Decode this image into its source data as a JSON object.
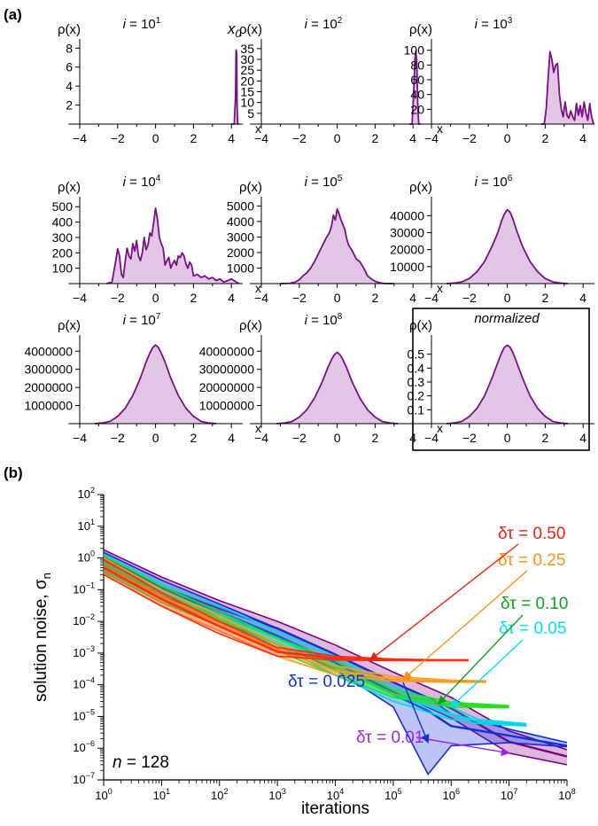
{
  "labels": {
    "panel_a": "(a)",
    "panel_b": "(b)"
  },
  "chart_data": [
    {
      "type": "area",
      "panel": "(a)",
      "title": "i = 10^1",
      "title_base": "i = 10",
      "title_exp": "1",
      "ylabel": "ρ(x)",
      "xlabel": "x",
      "xlim": [
        -4,
        4.6
      ],
      "ylim": [
        0,
        8.4
      ],
      "yticks": [
        2,
        4,
        6,
        8
      ],
      "xticks": [
        -4,
        -2,
        0,
        2,
        4
      ],
      "annotation": "x0",
      "annotation_base": "x",
      "annotation_sub": "0",
      "x": [
        4.0,
        4.15,
        4.22,
        4.25,
        4.28,
        4.3,
        4.33,
        4.4
      ],
      "y": [
        0,
        0,
        3,
        7.8,
        7.5,
        2,
        0,
        0
      ]
    },
    {
      "type": "area",
      "panel": "(a)",
      "title": "i = 10^2",
      "title_base": "i = 10",
      "title_exp": "2",
      "ylabel": "ρ(x)",
      "xlabel": "x",
      "xlim": [
        -4,
        4.6
      ],
      "ylim": [
        0,
        37
      ],
      "yticks": [
        5,
        10,
        15,
        20,
        25,
        30,
        35
      ],
      "xticks": [
        -4,
        -2,
        0,
        2,
        4
      ],
      "x": [
        3.8,
        3.95,
        4.0,
        4.05,
        4.1,
        4.15,
        4.2,
        4.25,
        4.3,
        4.4
      ],
      "y": [
        0,
        0,
        8,
        18,
        30,
        34,
        28,
        10,
        0,
        0
      ]
    },
    {
      "type": "area",
      "panel": "(a)",
      "title": "i = 10^3",
      "title_base": "i = 10",
      "title_exp": "3",
      "ylabel": "ρ(x)",
      "xlabel": "x",
      "xlim": [
        -4,
        4.6
      ],
      "ylim": [
        0,
        108
      ],
      "yticks": [
        20,
        40,
        60,
        80,
        100
      ],
      "xticks": [
        -4,
        -2,
        0,
        2,
        4
      ],
      "x": [
        1.8,
        1.95,
        2.05,
        2.15,
        2.25,
        2.35,
        2.45,
        2.55,
        2.65,
        2.75,
        2.85,
        2.95,
        3.05,
        3.15,
        3.25,
        3.35,
        3.45,
        3.55,
        3.65,
        3.75,
        3.85,
        3.95,
        4.05,
        4.15,
        4.25,
        4.35,
        4.45,
        4.55
      ],
      "y": [
        0,
        0,
        20,
        60,
        98,
        88,
        70,
        80,
        82,
        40,
        20,
        10,
        30,
        12,
        8,
        18,
        10,
        5,
        28,
        12,
        25,
        10,
        30,
        15,
        5,
        28,
        10,
        0
      ]
    },
    {
      "type": "area",
      "panel": "(a)",
      "title": "i = 10^4",
      "title_base": "i = 10",
      "title_exp": "4",
      "ylabel": "ρ(x)",
      "xlabel": "x",
      "xlim": [
        -4,
        4.6
      ],
      "ylim": [
        0,
        530
      ],
      "yticks": [
        100,
        200,
        300,
        400,
        500
      ],
      "xticks": [
        -4,
        -2,
        0,
        2,
        4
      ],
      "x": [
        -2.6,
        -2.3,
        -2.1,
        -2.0,
        -1.9,
        -1.8,
        -1.7,
        -1.6,
        -1.5,
        -1.4,
        -1.3,
        -1.2,
        -1.1,
        -1.0,
        -0.9,
        -0.8,
        -0.7,
        -0.6,
        -0.5,
        -0.4,
        -0.3,
        -0.2,
        -0.1,
        0.0,
        0.1,
        0.2,
        0.3,
        0.4,
        0.5,
        0.6,
        0.7,
        0.8,
        0.9,
        1.0,
        1.1,
        1.2,
        1.3,
        1.4,
        1.5,
        1.6,
        1.7,
        1.8,
        1.9,
        2.0,
        2.2,
        2.4,
        2.6,
        2.8,
        3.0,
        3.2,
        3.4,
        3.6,
        3.8,
        4.0,
        4.2,
        4.4
      ],
      "y": [
        0,
        10,
        150,
        225,
        180,
        60,
        40,
        150,
        230,
        180,
        160,
        260,
        210,
        280,
        180,
        150,
        200,
        300,
        220,
        250,
        330,
        310,
        400,
        490,
        420,
        300,
        260,
        230,
        120,
        150,
        170,
        100,
        130,
        150,
        120,
        180,
        170,
        200,
        180,
        130,
        100,
        140,
        120,
        50,
        60,
        40,
        50,
        30,
        40,
        20,
        30,
        10,
        20,
        30,
        15,
        0
      ]
    },
    {
      "type": "area",
      "panel": "(a)",
      "title": "i = 10^5",
      "title_base": "i = 10",
      "title_exp": "5",
      "ylabel": "ρ(x)",
      "xlabel": "x",
      "xlim": [
        -4,
        4.6
      ],
      "ylim": [
        0,
        5250
      ],
      "yticks": [
        1000,
        2000,
        3000,
        4000,
        5000
      ],
      "xticks": [
        -4,
        -2,
        0,
        2,
        4
      ],
      "x": [
        -3.0,
        -2.5,
        -2.2,
        -2.0,
        -1.8,
        -1.6,
        -1.4,
        -1.2,
        -1.0,
        -0.8,
        -0.6,
        -0.5,
        -0.4,
        -0.3,
        -0.2,
        -0.1,
        0.0,
        0.1,
        0.2,
        0.3,
        0.4,
        0.5,
        0.6,
        0.8,
        1.0,
        1.2,
        1.4,
        1.6,
        1.8,
        2.0,
        2.2,
        2.5,
        3.0
      ],
      "y": [
        0,
        20,
        100,
        250,
        500,
        700,
        1000,
        1400,
        1900,
        2400,
        2900,
        3100,
        3300,
        3700,
        4400,
        4100,
        4800,
        4500,
        4100,
        3800,
        3500,
        2900,
        2500,
        2100,
        1600,
        1400,
        1000,
        500,
        300,
        150,
        60,
        10,
        0
      ]
    },
    {
      "type": "area",
      "panel": "(a)",
      "title": "i = 10^6",
      "title_base": "i = 10",
      "title_exp": "6",
      "ylabel": "ρ(x)",
      "xlabel": "x",
      "xlim": [
        -4,
        4.6
      ],
      "ylim": [
        0,
        48000
      ],
      "yticks": [
        10000,
        20000,
        30000,
        40000
      ],
      "xticks": [
        -4,
        -2,
        0,
        2,
        4
      ],
      "x": [
        -3.2,
        -2.8,
        -2.4,
        -2.0,
        -1.6,
        -1.2,
        -0.8,
        -0.5,
        -0.3,
        -0.15,
        0.0,
        0.15,
        0.3,
        0.5,
        0.8,
        1.2,
        1.6,
        2.0,
        2.4,
        2.8,
        3.2
      ],
      "y": [
        0,
        300,
        1000,
        3000,
        7000,
        13000,
        22000,
        30000,
        37000,
        41000,
        43500,
        42000,
        38000,
        31000,
        22000,
        13000,
        7000,
        3000,
        1000,
        300,
        0
      ]
    },
    {
      "type": "area",
      "panel": "(a)",
      "title": "i = 10^7",
      "title_base": "i = 10",
      "title_exp": "7",
      "ylabel": "ρ(x)",
      "xlabel": "x",
      "xlim": [
        -4,
        4.6
      ],
      "ylim": [
        0,
        4600000
      ],
      "yticks": [
        1000000,
        2000000,
        3000000,
        4000000
      ],
      "xticks": [
        -4,
        -2,
        0,
        2,
        4
      ],
      "x": [
        -3.2,
        -2.8,
        -2.4,
        -2.0,
        -1.6,
        -1.2,
        -0.8,
        -0.5,
        -0.3,
        -0.15,
        0.0,
        0.15,
        0.3,
        0.5,
        0.8,
        1.2,
        1.6,
        2.0,
        2.4,
        2.8,
        3.2
      ],
      "y": [
        0,
        40000,
        120000,
        400000,
        850000,
        1550000,
        2520000,
        3400000,
        3900000,
        4200000,
        4350000,
        4200000,
        3900000,
        3400000,
        2520000,
        1550000,
        850000,
        400000,
        120000,
        40000,
        0
      ]
    },
    {
      "type": "area",
      "panel": "(a)",
      "title": "i = 10^8",
      "title_base": "i = 10",
      "title_exp": "8",
      "ylabel": "ρ(x)",
      "xlabel": "x",
      "xlim": [
        -4,
        4.6
      ],
      "ylim": [
        0,
        46000000
      ],
      "yticks": [
        10000000,
        20000000,
        30000000,
        40000000
      ],
      "xticks": [
        -4,
        -2,
        0,
        2,
        4
      ],
      "x": [
        -3.2,
        -2.8,
        -2.4,
        -2.0,
        -1.6,
        -1.2,
        -0.8,
        -0.5,
        -0.3,
        -0.15,
        0.0,
        0.15,
        0.3,
        0.5,
        0.8,
        1.2,
        1.6,
        2.0,
        2.4,
        2.8,
        3.2
      ],
      "y": [
        0,
        350000,
        1100000,
        3600000,
        7700000,
        14000000,
        22800000,
        30800000,
        35400000,
        38000000,
        39400000,
        38000000,
        35400000,
        30800000,
        22800000,
        14000000,
        7700000,
        3600000,
        1100000,
        350000,
        0
      ]
    },
    {
      "type": "area",
      "panel": "(a)",
      "title": "normalized",
      "title_italic": true,
      "ylabel": "ρ(x)",
      "xlabel": "x",
      "xlim": [
        -4,
        4.6
      ],
      "ylim": [
        0,
        0.6
      ],
      "yticks": [
        0.1,
        0.2,
        0.3,
        0.4,
        0.5
      ],
      "xticks": [
        -4,
        -2,
        0,
        2,
        4
      ],
      "boxed": true,
      "x": [
        -3.2,
        -2.8,
        -2.4,
        -2.0,
        -1.6,
        -1.2,
        -0.8,
        -0.5,
        -0.3,
        -0.15,
        0.0,
        0.15,
        0.3,
        0.5,
        0.8,
        1.2,
        1.6,
        2.0,
        2.4,
        2.8,
        3.2
      ],
      "y": [
        0,
        0.005,
        0.016,
        0.052,
        0.11,
        0.2,
        0.33,
        0.44,
        0.51,
        0.55,
        0.565,
        0.55,
        0.51,
        0.44,
        0.33,
        0.2,
        0.11,
        0.052,
        0.016,
        0.005,
        0
      ]
    },
    {
      "type": "line",
      "panel": "(b)",
      "xscale": "log",
      "yscale": "log",
      "xlabel": "iterations",
      "ylabel": "solution noise, σn",
      "ylabel_base": "solution noise, σ",
      "ylabel_sub": "n",
      "xlim": [
        1,
        100000000
      ],
      "ylim": [
        1e-07,
        100
      ],
      "xtick_exponents": [
        0,
        1,
        2,
        3,
        4,
        5,
        6,
        7,
        8
      ],
      "ytick_exponents": [
        -7,
        -6,
        -5,
        -4,
        -3,
        -2,
        -1,
        0,
        1,
        2
      ],
      "tick_base": "10",
      "annotation": "n = 128",
      "annotation_var": "n",
      "annotation_val": " = 128",
      "series": [
        {
          "name": "δτ = 0.01",
          "color": "#a020f0",
          "band_color": "#800080",
          "x": [
            1,
            10,
            100,
            1000,
            10000,
            100000,
            1000000,
            10000000,
            100000000
          ],
          "upper": [
            1.8,
            0.25,
            0.045,
            0.01,
            0.0018,
            0.00025,
            4e-05,
            3.5e-06,
            9e-07
          ],
          "mean": [
            1.0,
            0.12,
            0.025,
            0.006,
            0.0009,
            0.00012,
            1.8e-05,
            1.6e-06,
            5.5e-07
          ],
          "lower": [
            0.5,
            0.06,
            0.015,
            0.0035,
            0.0005,
            6e-05,
            9e-06,
            7e-07,
            3e-07
          ],
          "arrow_to": [
            10000000,
            7e-07
          ]
        },
        {
          "name": "δτ = 0.025",
          "color": "#1030e0",
          "band_color": "#1030e0",
          "x": [
            1,
            10,
            100,
            1000,
            10000,
            100000,
            400000,
            1000000,
            10000000,
            100000000
          ],
          "upper": [
            1.5,
            0.2,
            0.035,
            0.006,
            0.0009,
            0.00012,
            4e-05,
            1.2e-05,
            4e-06,
            1.5e-06
          ],
          "mean": [
            0.8,
            0.1,
            0.02,
            0.0035,
            0.0005,
            5e-05,
            1.5e-05,
            5e-06,
            2.5e-06,
            1.2e-06
          ],
          "lower": [
            0.4,
            0.05,
            0.01,
            0.002,
            0.0003,
            2e-05,
            1.5e-07,
            1.2e-06,
            1.5e-06,
            1.1e-06
          ],
          "arrow_to": [
            400000,
            1.5e-06
          ]
        },
        {
          "name": "δτ = 0.05",
          "color": "#00e0f0",
          "band_color": "#00d8e8",
          "x": [
            1,
            10,
            100,
            1000,
            10000,
            100000,
            1000000,
            3000000,
            20000000
          ],
          "upper": [
            1.3,
            0.15,
            0.03,
            0.005,
            0.0008,
            9e-05,
            2e-05,
            8e-06,
            6e-06
          ],
          "mean": [
            0.7,
            0.09,
            0.015,
            0.003,
            0.0004,
            5e-05,
            1.2e-05,
            7e-06,
            5.5e-06
          ],
          "lower": [
            0.4,
            0.05,
            0.009,
            0.0018,
            0.0002,
            3e-05,
            8e-06,
            6e-06,
            5e-06
          ],
          "arrow_to": [
            1000000,
            2e-05
          ]
        },
        {
          "name": "δτ = 0.10",
          "color": "#10a020",
          "band_color": "#20e020",
          "x": [
            1,
            10,
            100,
            1000,
            10000,
            100000,
            1000000,
            10000000
          ],
          "upper": [
            1.2,
            0.13,
            0.02,
            0.003,
            0.0006,
            7e-05,
            2.8e-05,
            2.2e-05
          ],
          "mean": [
            0.6,
            0.08,
            0.012,
            0.002,
            0.00035,
            5e-05,
            2.4e-05,
            2e-05
          ],
          "lower": [
            0.35,
            0.04,
            0.007,
            0.0012,
            0.0002,
            4e-05,
            2e-05,
            1.9e-05
          ],
          "arrow_to": [
            600000,
            2.5e-05
          ]
        },
        {
          "name": "δτ = 0.25",
          "color": "#ff9010",
          "band_color": "#ff9a20",
          "x": [
            1,
            10,
            100,
            1000,
            10000,
            100000,
            1000000,
            4000000
          ],
          "upper": [
            1.0,
            0.1,
            0.015,
            0.002,
            0.0004,
            0.00018,
            0.00014,
            0.00013
          ],
          "mean": [
            0.5,
            0.06,
            0.009,
            0.0013,
            0.00028,
            0.00015,
            0.00013,
            0.00013
          ],
          "lower": [
            0.3,
            0.03,
            0.005,
            0.0008,
            0.0002,
            0.00013,
            0.00012,
            0.00012
          ],
          "arrow_to": [
            150000,
            0.00015
          ]
        },
        {
          "name": "δτ = 0.50",
          "color": "#f02010",
          "band_color": "#ff2a10",
          "x": [
            1,
            10,
            100,
            1000,
            10000,
            100000,
            1000000,
            2000000
          ],
          "upper": [
            0.9,
            0.08,
            0.01,
            0.0015,
            0.0008,
            0.00065,
            0.0006,
            0.0006
          ],
          "mean": [
            0.5,
            0.05,
            0.007,
            0.0011,
            0.00068,
            0.0006,
            0.0006,
            0.0006
          ],
          "lower": [
            0.3,
            0.03,
            0.004,
            0.0008,
            0.0006,
            0.00058,
            0.00058,
            0.00058
          ],
          "arrow_to": [
            40000,
            0.0006
          ]
        }
      ]
    }
  ]
}
